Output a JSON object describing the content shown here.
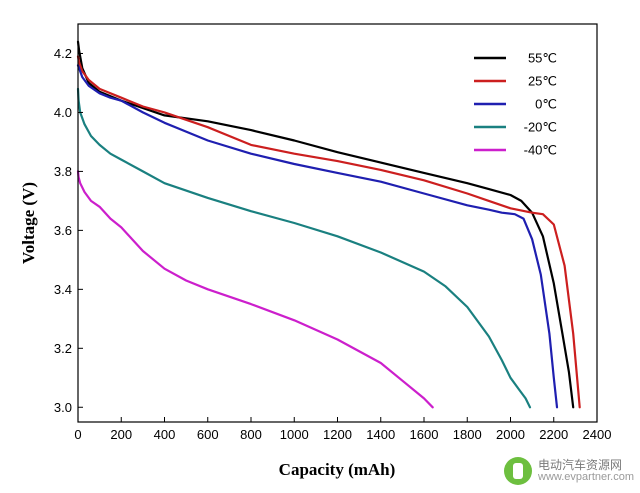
{
  "chart_data": {
    "type": "line",
    "title": "",
    "xlabel": "Capacity (mAh)",
    "ylabel": "Voltage (V)",
    "xlim": [
      0,
      2400
    ],
    "ylim": [
      2.95,
      4.3
    ],
    "xticks": [
      0,
      200,
      400,
      600,
      800,
      1000,
      1200,
      1400,
      1600,
      1800,
      2000,
      2200,
      2400
    ],
    "yticks": [
      3.0,
      3.2,
      3.4,
      3.6,
      3.8,
      4.0,
      4.2
    ],
    "grid": false,
    "legend_position": "top-right",
    "series": [
      {
        "name": "55℃",
        "color": "#000000",
        "x": [
          0,
          5,
          20,
          50,
          100,
          200,
          400,
          600,
          800,
          1000,
          1200,
          1400,
          1600,
          1800,
          1900,
          2000,
          2050,
          2100,
          2150,
          2200,
          2240,
          2270,
          2290
        ],
        "y": [
          4.24,
          4.21,
          4.15,
          4.1,
          4.07,
          4.04,
          3.99,
          3.97,
          3.94,
          3.905,
          3.865,
          3.83,
          3.795,
          3.76,
          3.74,
          3.72,
          3.7,
          3.66,
          3.58,
          3.42,
          3.25,
          3.12,
          3.0
        ]
      },
      {
        "name": "25℃",
        "color": "#cc1f1f",
        "x": [
          0,
          5,
          20,
          50,
          100,
          200,
          300,
          400,
          500,
          600,
          800,
          1000,
          1200,
          1400,
          1600,
          1800,
          1900,
          2000,
          2100,
          2150,
          2200,
          2250,
          2290,
          2320
        ],
        "y": [
          4.19,
          4.17,
          4.14,
          4.11,
          4.08,
          4.05,
          4.02,
          4.0,
          3.975,
          3.95,
          3.89,
          3.86,
          3.835,
          3.805,
          3.77,
          3.725,
          3.7,
          3.675,
          3.66,
          3.655,
          3.62,
          3.48,
          3.25,
          3.0
        ]
      },
      {
        "name": "0℃",
        "color": "#1f1fb0",
        "x": [
          0,
          5,
          20,
          50,
          100,
          150,
          200,
          300,
          400,
          600,
          800,
          1000,
          1200,
          1400,
          1600,
          1800,
          1900,
          1960,
          2020,
          2060,
          2100,
          2140,
          2180,
          2200,
          2215
        ],
        "y": [
          4.16,
          4.15,
          4.12,
          4.09,
          4.065,
          4.05,
          4.04,
          4.0,
          3.965,
          3.905,
          3.86,
          3.825,
          3.795,
          3.765,
          3.725,
          3.685,
          3.67,
          3.66,
          3.655,
          3.64,
          3.57,
          3.45,
          3.25,
          3.1,
          3.0
        ]
      },
      {
        "name": "-20℃",
        "color": "#1a8080",
        "x": [
          0,
          3,
          10,
          30,
          60,
          100,
          150,
          200,
          300,
          400,
          600,
          800,
          1000,
          1200,
          1400,
          1600,
          1700,
          1800,
          1900,
          1960,
          2000,
          2040,
          2070,
          2090
        ],
        "y": [
          4.08,
          4.04,
          4.0,
          3.96,
          3.92,
          3.89,
          3.86,
          3.84,
          3.8,
          3.76,
          3.71,
          3.665,
          3.625,
          3.58,
          3.525,
          3.46,
          3.41,
          3.34,
          3.24,
          3.16,
          3.1,
          3.06,
          3.03,
          3.0
        ]
      },
      {
        "name": "-40℃",
        "color": "#cc1fcc",
        "x": [
          0,
          3,
          10,
          30,
          60,
          100,
          150,
          200,
          300,
          400,
          500,
          600,
          800,
          1000,
          1200,
          1400,
          1500,
          1600,
          1640
        ],
        "y": [
          3.8,
          3.78,
          3.76,
          3.73,
          3.7,
          3.68,
          3.64,
          3.61,
          3.53,
          3.47,
          3.43,
          3.4,
          3.35,
          3.295,
          3.23,
          3.15,
          3.09,
          3.03,
          3.0
        ]
      }
    ]
  },
  "watermark": {
    "cn_text": "电动汽车资源网",
    "url": "www.evpartner.com",
    "logo_color": "#6dbf3f"
  }
}
